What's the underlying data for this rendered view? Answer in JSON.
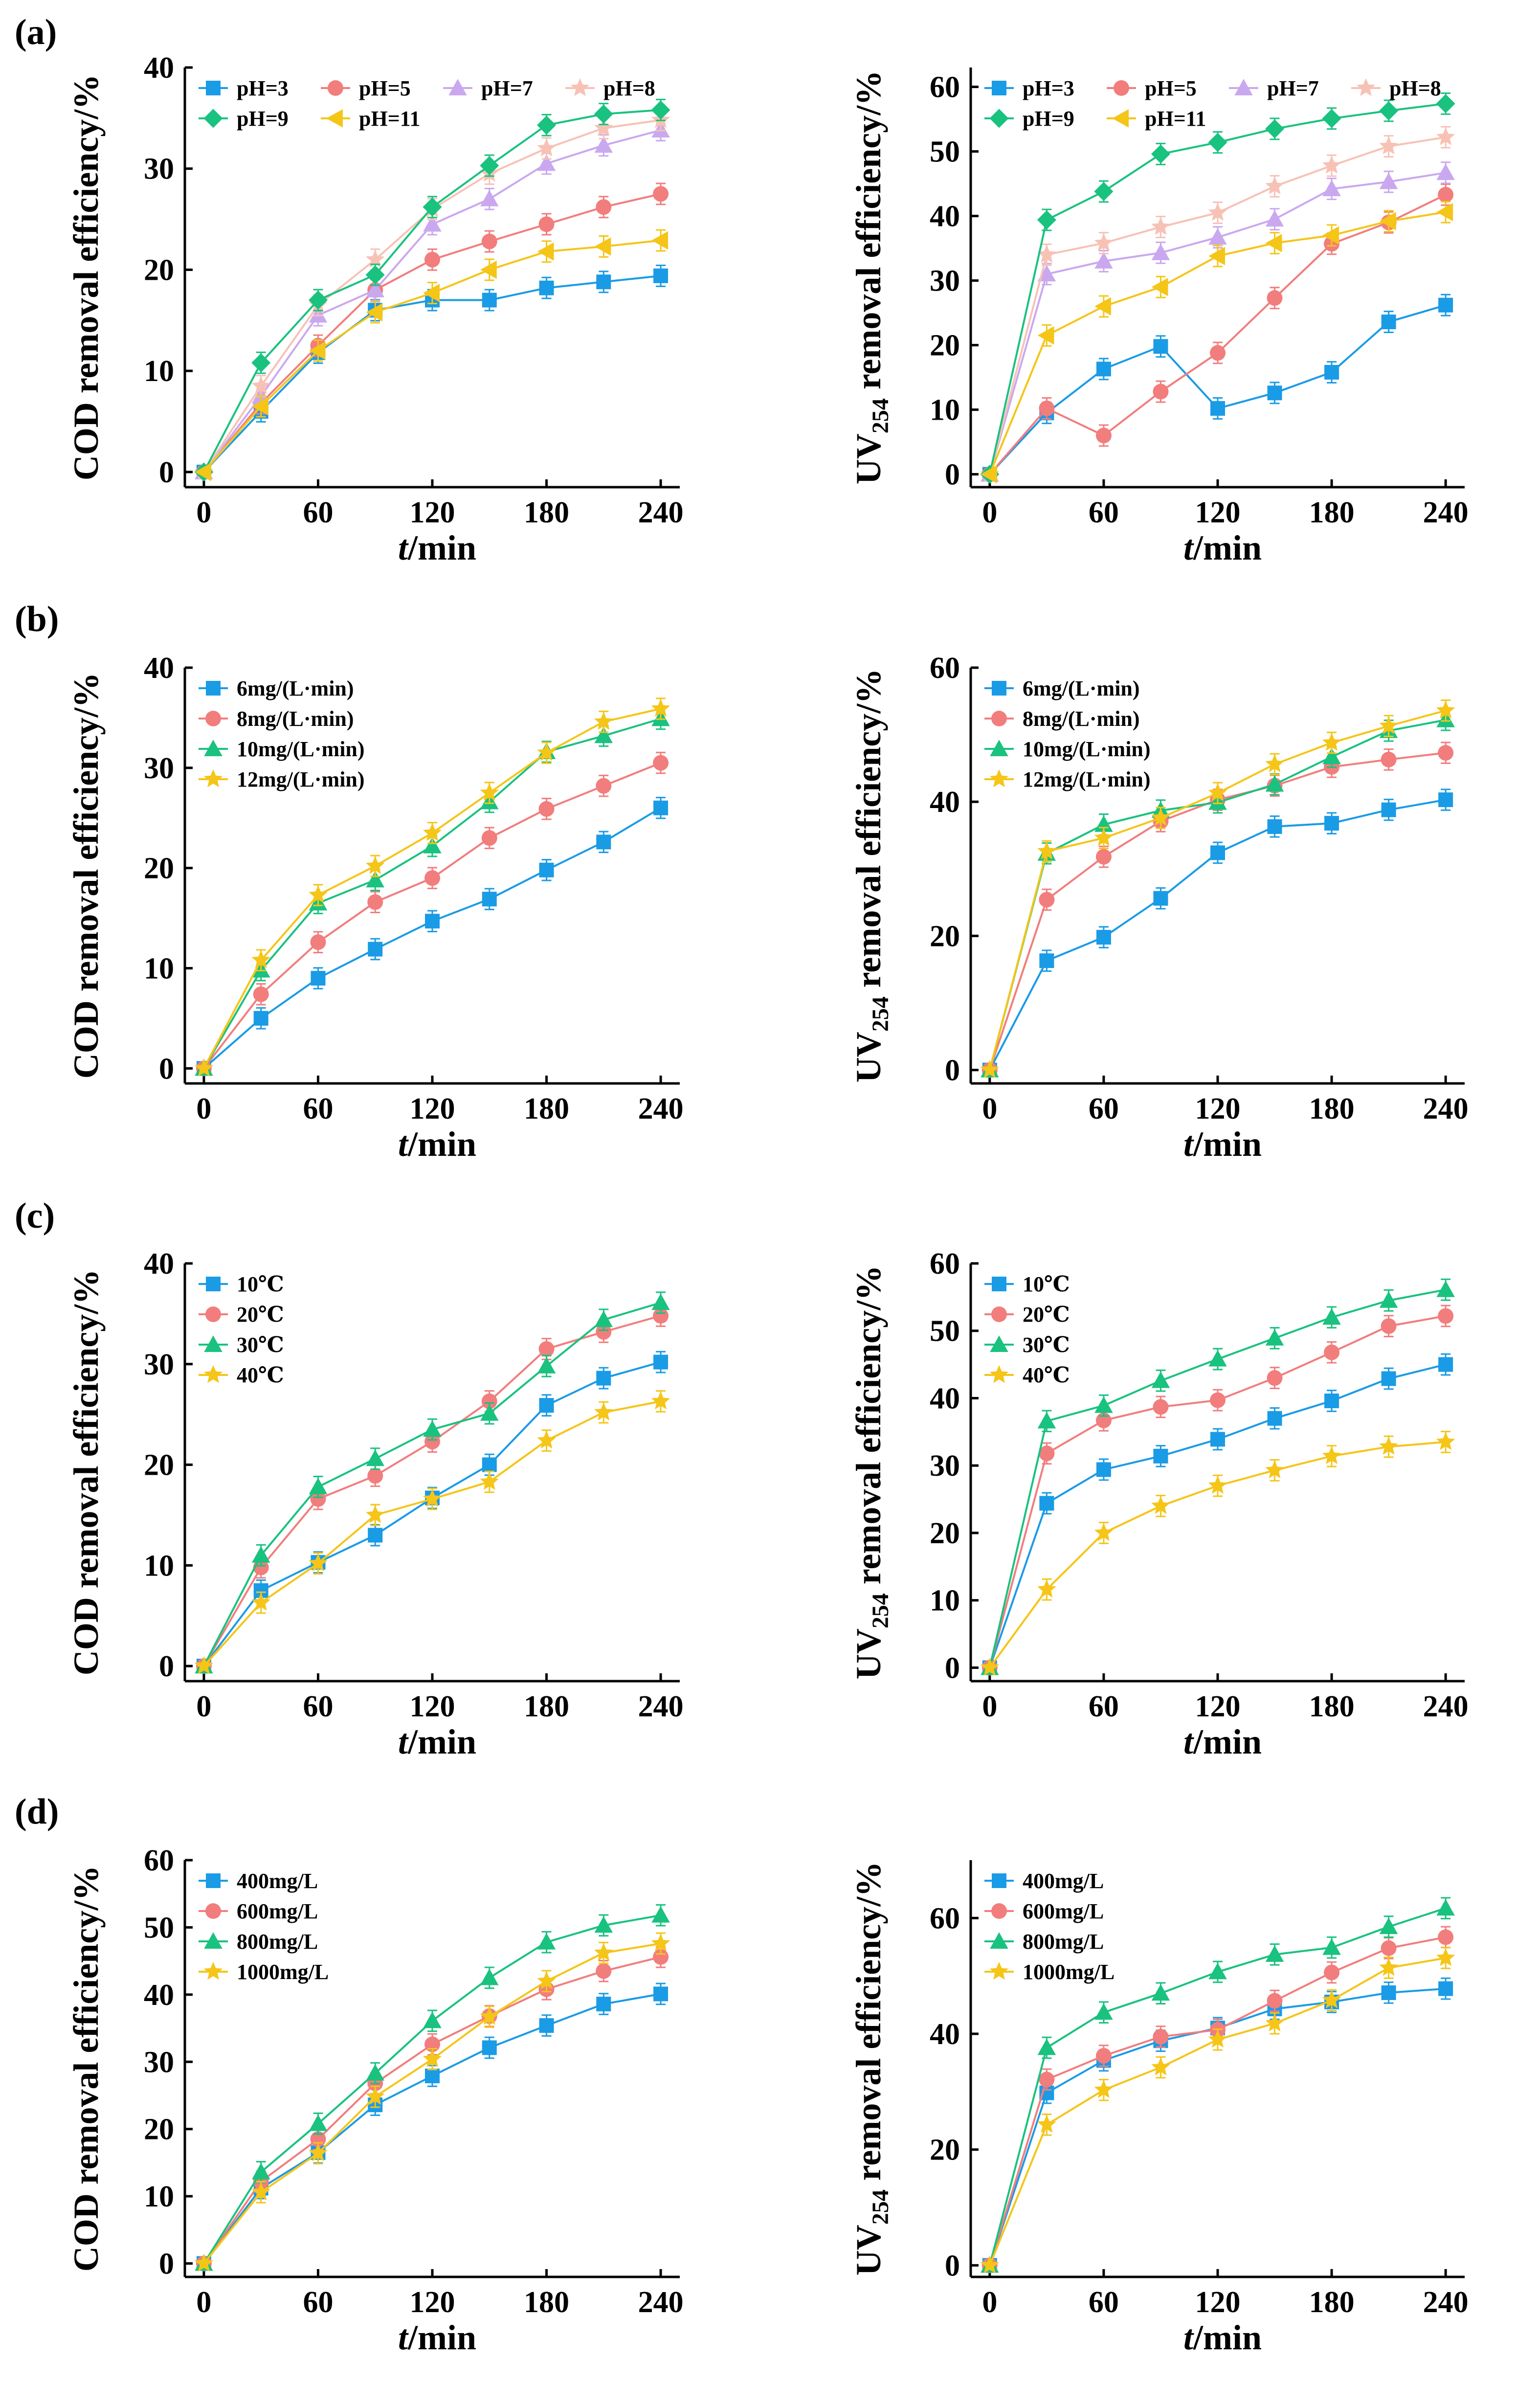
{
  "figure": {
    "colors": {
      "s1": "#1a9be6",
      "s2": "#f27d7d",
      "s3": "#caa8f0",
      "s4": "#f7c2b5",
      "s5": "#19c27f",
      "s6": "#f5c518",
      "b1": "#1a9be6",
      "b2": "#f27d7d",
      "b3": "#19c27f",
      "b4": "#f5c518"
    }
  },
  "chart_data": [
    {
      "id": "a-left",
      "panel_label": "(a)",
      "type": "line",
      "title": "",
      "xlabel_italic": "t",
      "xlabel_rest": "/min",
      "ylabel": "COD removal efficiency/%",
      "ylabel_sub": "",
      "x": [
        0,
        30,
        60,
        90,
        120,
        150,
        180,
        210,
        240
      ],
      "xticks": [
        0,
        60,
        120,
        180,
        240
      ],
      "xlim": [
        -10,
        250
      ],
      "yticks": [
        0,
        10,
        20,
        30,
        40
      ],
      "ylim": [
        -1.5,
        40
      ],
      "legend_cols": 4,
      "series": [
        {
          "name": "pH=3",
          "marker": "square",
          "color": "#1a9be6",
          "values": [
            0,
            6,
            11.8,
            16,
            17,
            17,
            18.2,
            18.8,
            19.4
          ]
        },
        {
          "name": "pH=5",
          "marker": "circle",
          "color": "#f27d7d",
          "values": [
            0,
            6.8,
            12.5,
            18,
            21,
            22.8,
            24.5,
            26.2,
            27.5
          ]
        },
        {
          "name": "pH=7",
          "marker": "triangle",
          "color": "#caa8f0",
          "values": [
            0,
            7.5,
            15.5,
            18,
            24.5,
            27,
            30.5,
            32.3,
            33.8
          ]
        },
        {
          "name": "pH=8",
          "marker": "star",
          "color": "#f7c2b5",
          "values": [
            0,
            8.5,
            16.5,
            21,
            26,
            29.5,
            32,
            34,
            34.8
          ]
        },
        {
          "name": "pH=9",
          "marker": "diamond",
          "color": "#19c27f",
          "values": [
            0,
            10.8,
            17,
            19.5,
            26.2,
            30.3,
            34.3,
            35.4,
            35.8
          ]
        },
        {
          "name": "pH=11",
          "marker": "tri-left",
          "color": "#f5c518",
          "values": [
            0,
            6.5,
            12,
            15.8,
            17.7,
            20,
            21.8,
            22.3,
            22.9
          ]
        }
      ]
    },
    {
      "id": "a-right",
      "panel_label": "",
      "type": "line",
      "title": "",
      "xlabel_italic": "t",
      "xlabel_rest": "/min",
      "ylabel": "UV",
      "ylabel_sub": "254",
      "ylabel_tail": " removal efficiency/%",
      "x": [
        0,
        30,
        60,
        90,
        120,
        150,
        180,
        210,
        240
      ],
      "xticks": [
        0,
        60,
        120,
        180,
        240
      ],
      "xlim": [
        -10,
        250
      ],
      "yticks": [
        0,
        10,
        20,
        30,
        40,
        50,
        60
      ],
      "ylim": [
        -2,
        63
      ],
      "legend_cols": 4,
      "series": [
        {
          "name": "pH=3",
          "marker": "square",
          "color": "#1a9be6",
          "values": [
            0,
            9.5,
            16.3,
            19.8,
            10.2,
            12.6,
            15.8,
            23.6,
            26.2
          ]
        },
        {
          "name": "pH=5",
          "marker": "circle",
          "color": "#f27d7d",
          "values": [
            0,
            10.2,
            6,
            12.8,
            18.8,
            27.3,
            35.7,
            39,
            43.3
          ]
        },
        {
          "name": "pH=7",
          "marker": "triangle",
          "color": "#caa8f0",
          "values": [
            0,
            31,
            33,
            34.3,
            36.7,
            39.5,
            44.2,
            45.3,
            46.7
          ]
        },
        {
          "name": "pH=8",
          "marker": "star",
          "color": "#f7c2b5",
          "values": [
            0,
            34,
            35.8,
            38.3,
            40.5,
            44.6,
            47.8,
            50.8,
            52.2
          ]
        },
        {
          "name": "pH=9",
          "marker": "diamond",
          "color": "#19c27f",
          "values": [
            0,
            39.4,
            43.8,
            49.6,
            51.4,
            53.5,
            55.1,
            56.3,
            57.4
          ]
        },
        {
          "name": "pH=11",
          "marker": "tri-left",
          "color": "#f5c518",
          "values": [
            0,
            21.5,
            26,
            29,
            33.8,
            35.8,
            37,
            39.2,
            40.6
          ]
        }
      ]
    },
    {
      "id": "b-left",
      "panel_label": "(b)",
      "type": "line",
      "title": "",
      "xlabel_italic": "t",
      "xlabel_rest": "/min",
      "ylabel": "COD removal efficiency/%",
      "ylabel_sub": "",
      "x": [
        0,
        30,
        60,
        90,
        120,
        150,
        180,
        210,
        240
      ],
      "xticks": [
        0,
        60,
        120,
        180,
        240
      ],
      "xlim": [
        -10,
        250
      ],
      "yticks": [
        0,
        10,
        20,
        30,
        40
      ],
      "ylim": [
        -1.5,
        40
      ],
      "legend_cols": 1,
      "series": [
        {
          "name": "6mg/(L·min)",
          "marker": "square",
          "color": "#1a9be6",
          "values": [
            0,
            5,
            9,
            11.9,
            14.7,
            16.9,
            19.8,
            22.6,
            26
          ]
        },
        {
          "name": "8mg/(L·min)",
          "marker": "circle",
          "color": "#f27d7d",
          "values": [
            0,
            7.4,
            12.6,
            16.6,
            19,
            23,
            25.9,
            28.2,
            30.5
          ]
        },
        {
          "name": "10mg/(L·min)",
          "marker": "triangle",
          "color": "#19c27f",
          "values": [
            0,
            9.8,
            16.5,
            18.8,
            22.2,
            26.6,
            31.6,
            33.2,
            34.9
          ]
        },
        {
          "name": "12mg/(L·min)",
          "marker": "star",
          "color": "#f5c518",
          "values": [
            0,
            10.8,
            17.3,
            20.2,
            23.5,
            27.5,
            31.5,
            34.6,
            35.9
          ]
        }
      ]
    },
    {
      "id": "b-right",
      "panel_label": "",
      "type": "line",
      "title": "",
      "xlabel_italic": "t",
      "xlabel_rest": "/min",
      "ylabel": "UV",
      "ylabel_sub": "254",
      "ylabel_tail": " removal efficiency/%",
      "x": [
        0,
        30,
        60,
        90,
        120,
        150,
        180,
        210,
        240
      ],
      "xticks": [
        0,
        60,
        120,
        180,
        240
      ],
      "xlim": [
        -10,
        250
      ],
      "yticks": [
        0,
        20,
        40,
        60
      ],
      "ylim": [
        -2,
        60
      ],
      "legend_cols": 1,
      "series": [
        {
          "name": "6mg/(L·min)",
          "marker": "square",
          "color": "#1a9be6",
          "values": [
            0,
            16.3,
            19.8,
            25.6,
            32.4,
            36.3,
            36.8,
            38.8,
            40.3
          ]
        },
        {
          "name": "8mg/(L·min)",
          "marker": "circle",
          "color": "#f27d7d",
          "values": [
            0,
            25.4,
            31.8,
            37.1,
            40.3,
            42.4,
            45.2,
            46.3,
            47.3
          ]
        },
        {
          "name": "10mg/(L·min)",
          "marker": "triangle",
          "color": "#19c27f",
          "values": [
            0,
            32.3,
            36.6,
            38.7,
            39.9,
            42.6,
            46.7,
            50.6,
            52.2
          ]
        },
        {
          "name": "12mg/(L·min)",
          "marker": "star",
          "color": "#f5c518",
          "values": [
            0,
            32.6,
            34.6,
            37.6,
            41.3,
            45.6,
            48.8,
            51.3,
            53.6
          ]
        }
      ]
    },
    {
      "id": "c-left",
      "panel_label": "(c)",
      "type": "line",
      "title": "",
      "xlabel_italic": "t",
      "xlabel_rest": "/min",
      "ylabel": "COD removal efficiency/%",
      "ylabel_sub": "",
      "x": [
        0,
        30,
        60,
        90,
        120,
        150,
        180,
        210,
        240
      ],
      "xticks": [
        0,
        60,
        120,
        180,
        240
      ],
      "xlim": [
        -10,
        250
      ],
      "yticks": [
        0,
        10,
        20,
        30,
        40
      ],
      "ylim": [
        -1.5,
        40
      ],
      "legend_cols": 1,
      "series": [
        {
          "name": "10℃",
          "marker": "square",
          "color": "#1a9be6",
          "values": [
            0,
            7.5,
            10.3,
            13,
            16.7,
            20,
            25.9,
            28.6,
            30.2
          ]
        },
        {
          "name": "20℃",
          "marker": "circle",
          "color": "#f27d7d",
          "values": [
            0,
            9.8,
            16.6,
            18.9,
            22.3,
            26.3,
            31.5,
            33.2,
            34.8
          ]
        },
        {
          "name": "30℃",
          "marker": "triangle",
          "color": "#19c27f",
          "values": [
            0,
            11,
            17.8,
            20.6,
            23.5,
            25.1,
            29.8,
            34.4,
            36.1
          ]
        },
        {
          "name": "40℃",
          "marker": "star",
          "color": "#f5c518",
          "values": [
            0,
            6.3,
            10.2,
            15,
            16.6,
            18.3,
            22.4,
            25.2,
            26.3
          ]
        }
      ]
    },
    {
      "id": "c-right",
      "panel_label": "",
      "type": "line",
      "title": "",
      "xlabel_italic": "t",
      "xlabel_rest": "/min",
      "ylabel": "UV",
      "ylabel_sub": "254",
      "ylabel_tail": " removal efficiency/%",
      "x": [
        0,
        30,
        60,
        90,
        120,
        150,
        180,
        210,
        240
      ],
      "xticks": [
        0,
        60,
        120,
        180,
        240
      ],
      "xlim": [
        -10,
        250
      ],
      "yticks": [
        0,
        10,
        20,
        30,
        40,
        50,
        60
      ],
      "ylim": [
        -2,
        60
      ],
      "legend_cols": 1,
      "series": [
        {
          "name": "10℃",
          "marker": "square",
          "color": "#1a9be6",
          "values": [
            0,
            24.4,
            29.4,
            31.4,
            33.9,
            37,
            39.6,
            42.9,
            45
          ]
        },
        {
          "name": "20℃",
          "marker": "circle",
          "color": "#f27d7d",
          "values": [
            0,
            31.8,
            36.7,
            38.7,
            39.7,
            43,
            46.8,
            50.7,
            52.2
          ]
        },
        {
          "name": "30℃",
          "marker": "triangle",
          "color": "#19c27f",
          "values": [
            0,
            36.6,
            38.9,
            42.6,
            45.8,
            48.9,
            52,
            54.5,
            56.1
          ]
        },
        {
          "name": "40℃",
          "marker": "star",
          "color": "#f5c518",
          "values": [
            0,
            11.6,
            20,
            24,
            27,
            29.3,
            31.4,
            32.8,
            33.5
          ]
        }
      ]
    },
    {
      "id": "d-left",
      "panel_label": "(d)",
      "type": "line",
      "title": "",
      "xlabel_italic": "t",
      "xlabel_rest": "/min",
      "ylabel": "COD removal efficiency/%",
      "ylabel_sub": "",
      "x": [
        0,
        30,
        60,
        90,
        120,
        150,
        180,
        210,
        240
      ],
      "xticks": [
        0,
        60,
        120,
        180,
        240
      ],
      "xlim": [
        -10,
        250
      ],
      "yticks": [
        0,
        10,
        20,
        30,
        40,
        50,
        60
      ],
      "ylim": [
        -2,
        60
      ],
      "legend_cols": 1,
      "series": [
        {
          "name": "400mg/L",
          "marker": "square",
          "color": "#1a9be6",
          "values": [
            0,
            11.2,
            16.5,
            23.6,
            27.9,
            32.1,
            35.4,
            38.6,
            40.1
          ]
        },
        {
          "name": "600mg/L",
          "marker": "circle",
          "color": "#f27d7d",
          "values": [
            0,
            12.2,
            18.5,
            26.8,
            32.6,
            36.8,
            40.8,
            43.5,
            45.6
          ]
        },
        {
          "name": "800mg/L",
          "marker": "triangle",
          "color": "#19c27f",
          "values": [
            0,
            13.6,
            20.8,
            28.3,
            36.1,
            42.5,
            47.8,
            50.3,
            51.8
          ]
        },
        {
          "name": "1000mg/L",
          "marker": "star",
          "color": "#f5c518",
          "values": [
            0,
            10.6,
            16.4,
            24.8,
            30.4,
            36.7,
            42,
            46.2,
            47.6
          ]
        }
      ]
    },
    {
      "id": "d-right",
      "panel_label": "",
      "type": "line",
      "title": "",
      "xlabel_italic": "t",
      "xlabel_rest": "/min",
      "ylabel": "UV",
      "ylabel_sub": "254",
      "ylabel_tail": " removal efficiency/%",
      "x": [
        0,
        30,
        60,
        90,
        120,
        150,
        180,
        210,
        240
      ],
      "xticks": [
        0,
        60,
        120,
        180,
        240
      ],
      "xlim": [
        -10,
        250
      ],
      "yticks": [
        0,
        20,
        40,
        60
      ],
      "ylim": [
        -2,
        70
      ],
      "legend_cols": 1,
      "series": [
        {
          "name": "400mg/L",
          "marker": "square",
          "color": "#1a9be6",
          "values": [
            0,
            29.8,
            35.4,
            38.8,
            41,
            44.3,
            45.5,
            47.1,
            47.8
          ]
        },
        {
          "name": "600mg/L",
          "marker": "circle",
          "color": "#f27d7d",
          "values": [
            0,
            32.1,
            36.2,
            39.5,
            40.7,
            45.7,
            50.6,
            54.8,
            56.7
          ]
        },
        {
          "name": "800mg/L",
          "marker": "triangle",
          "color": "#19c27f",
          "values": [
            0,
            37.6,
            43.7,
            47,
            50.7,
            53.7,
            54.9,
            58.5,
            61.7
          ]
        },
        {
          "name": "1000mg/L",
          "marker": "star",
          "color": "#f5c518",
          "values": [
            0,
            24.3,
            30.3,
            34.2,
            39,
            41.8,
            45.8,
            51.4,
            53.1
          ]
        }
      ]
    }
  ]
}
